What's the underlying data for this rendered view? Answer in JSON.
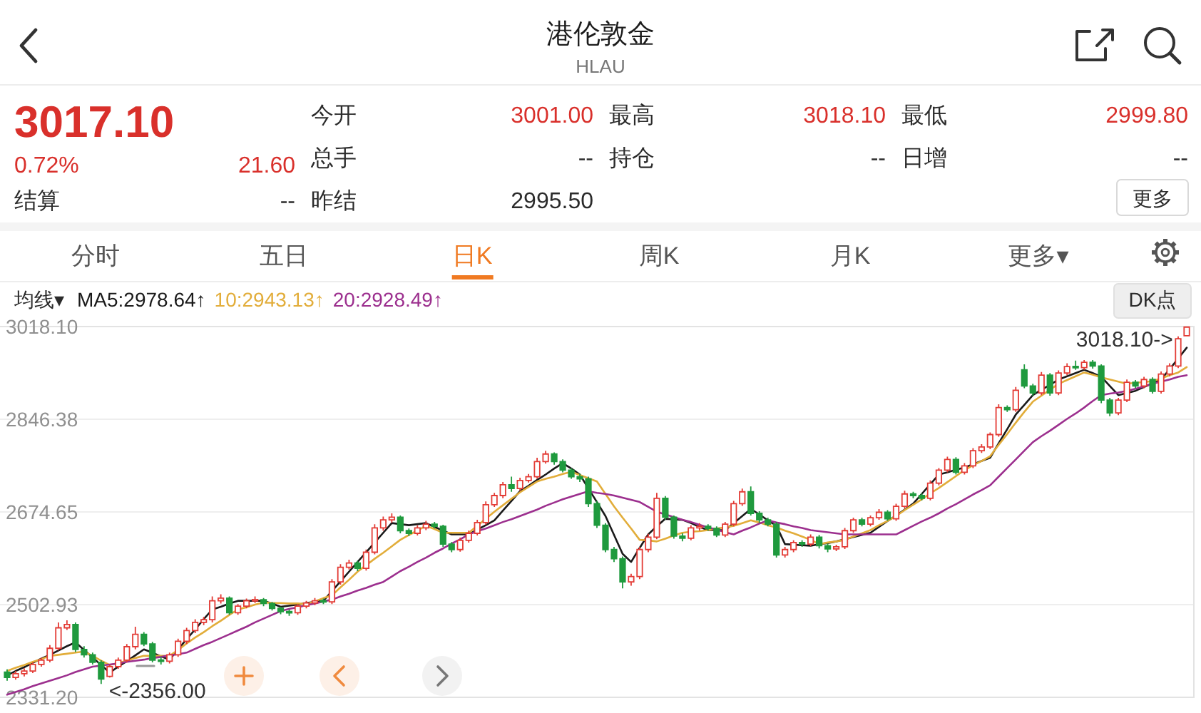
{
  "chart_data": {
    "type": "candlestick",
    "title": "港伦敦金",
    "subtitle": "HLAU",
    "categories": [
      null,
      null,
      null,
      null,
      null,
      null,
      null,
      null,
      null,
      null,
      null,
      null,
      null,
      null,
      null,
      null,
      null,
      null,
      null,
      null,
      null,
      null,
      null,
      null,
      null,
      null,
      null,
      null,
      null,
      null,
      null,
      null,
      null,
      null,
      null,
      null,
      null,
      null,
      null,
      null,
      null,
      null,
      null,
      null,
      null,
      null,
      null,
      null,
      null,
      null,
      null,
      null,
      null,
      null,
      null,
      null,
      null,
      null,
      null,
      null,
      null,
      null,
      null,
      null,
      null,
      null,
      null,
      null,
      null,
      null,
      null,
      null,
      null,
      null,
      null,
      null,
      null,
      null,
      null,
      null,
      null,
      null,
      null,
      null,
      null,
      null,
      null,
      null,
      null,
      null,
      null,
      null,
      null,
      null,
      null,
      null,
      null,
      null,
      null,
      null,
      null,
      null,
      null,
      null,
      null,
      null,
      null,
      null,
      null,
      null,
      null,
      null,
      null,
      null,
      null,
      null,
      null,
      null,
      null,
      null,
      null,
      null,
      null,
      null,
      null,
      null,
      null,
      null,
      null,
      null,
      null,
      null,
      null,
      null,
      null,
      null,
      null,
      null,
      null
    ],
    "ohlc": [
      [
        2378,
        2383,
        2362,
        2368
      ],
      [
        2368,
        2380,
        2364,
        2375
      ],
      [
        2375,
        2385,
        2370,
        2380
      ],
      [
        2380,
        2396,
        2376,
        2392
      ],
      [
        2392,
        2405,
        2388,
        2400
      ],
      [
        2400,
        2428,
        2396,
        2422
      ],
      [
        2422,
        2470,
        2418,
        2460
      ],
      [
        2460,
        2474,
        2456,
        2466
      ],
      [
        2466,
        2470,
        2415,
        2420
      ],
      [
        2420,
        2426,
        2405,
        2410
      ],
      [
        2410,
        2414,
        2392,
        2396
      ],
      [
        2396,
        2400,
        2356,
        2365
      ],
      [
        2370,
        2392,
        2368,
        2388
      ],
      [
        2388,
        2405,
        2384,
        2400
      ],
      [
        2400,
        2430,
        2396,
        2425
      ],
      [
        2425,
        2462,
        2420,
        2448
      ],
      [
        2448,
        2452,
        2426,
        2430
      ],
      [
        2430,
        2434,
        2396,
        2400
      ],
      [
        2400,
        2406,
        2392,
        2398
      ],
      [
        2398,
        2414,
        2394,
        2410
      ],
      [
        2410,
        2440,
        2406,
        2435
      ],
      [
        2435,
        2460,
        2430,
        2455
      ],
      [
        2455,
        2476,
        2450,
        2470
      ],
      [
        2470,
        2480,
        2465,
        2475
      ],
      [
        2475,
        2518,
        2470,
        2510
      ],
      [
        2510,
        2522,
        2505,
        2515
      ],
      [
        2515,
        2518,
        2484,
        2488
      ],
      [
        2488,
        2504,
        2484,
        2500
      ],
      [
        2500,
        2514,
        2496,
        2510
      ],
      [
        2510,
        2518,
        2506,
        2512
      ],
      [
        2512,
        2515,
        2500,
        2505
      ],
      [
        2505,
        2508,
        2492,
        2496
      ],
      [
        2496,
        2499,
        2485,
        2490
      ],
      [
        2490,
        2494,
        2482,
        2488
      ],
      [
        2488,
        2504,
        2484,
        2500
      ],
      [
        2500,
        2510,
        2496,
        2506
      ],
      [
        2506,
        2515,
        2502,
        2510
      ],
      [
        2510,
        2514,
        2504,
        2508
      ],
      [
        2508,
        2550,
        2504,
        2545
      ],
      [
        2545,
        2578,
        2540,
        2572
      ],
      [
        2572,
        2586,
        2568,
        2580
      ],
      [
        2580,
        2584,
        2565,
        2570
      ],
      [
        2570,
        2605,
        2566,
        2600
      ],
      [
        2600,
        2652,
        2596,
        2645
      ],
      [
        2645,
        2666,
        2640,
        2660
      ],
      [
        2660,
        2672,
        2655,
        2665
      ],
      [
        2665,
        2668,
        2635,
        2640
      ],
      [
        2640,
        2644,
        2630,
        2635
      ],
      [
        2635,
        2650,
        2631,
        2645
      ],
      [
        2645,
        2658,
        2641,
        2652
      ],
      [
        2652,
        2656,
        2644,
        2648
      ],
      [
        2648,
        2651,
        2610,
        2615
      ],
      [
        2615,
        2619,
        2600,
        2605
      ],
      [
        2605,
        2627,
        2601,
        2622
      ],
      [
        2622,
        2640,
        2618,
        2635
      ],
      [
        2635,
        2660,
        2631,
        2655
      ],
      [
        2655,
        2694,
        2651,
        2688
      ],
      [
        2688,
        2710,
        2684,
        2705
      ],
      [
        2705,
        2730,
        2700,
        2725
      ],
      [
        2725,
        2740,
        2712,
        2718
      ],
      [
        2718,
        2738,
        2714,
        2733
      ],
      [
        2733,
        2745,
        2729,
        2740
      ],
      [
        2740,
        2775,
        2736,
        2768
      ],
      [
        2768,
        2788,
        2764,
        2782
      ],
      [
        2782,
        2785,
        2762,
        2768
      ],
      [
        2768,
        2772,
        2748,
        2752
      ],
      [
        2752,
        2756,
        2736,
        2740
      ],
      [
        2740,
        2745,
        2730,
        2736
      ],
      [
        2736,
        2740,
        2684,
        2690
      ],
      [
        2690,
        2695,
        2645,
        2650
      ],
      [
        2650,
        2654,
        2600,
        2605
      ],
      [
        2605,
        2610,
        2582,
        2588
      ],
      [
        2588,
        2592,
        2533,
        2545
      ],
      [
        2545,
        2560,
        2538,
        2555
      ],
      [
        2555,
        2610,
        2550,
        2605
      ],
      [
        2605,
        2634,
        2600,
        2628
      ],
      [
        2628,
        2710,
        2624,
        2700
      ],
      [
        2700,
        2704,
        2660,
        2665
      ],
      [
        2665,
        2668,
        2625,
        2630
      ],
      [
        2630,
        2635,
        2620,
        2626
      ],
      [
        2626,
        2650,
        2622,
        2645
      ],
      [
        2645,
        2654,
        2640,
        2648
      ],
      [
        2648,
        2652,
        2640,
        2644
      ],
      [
        2644,
        2648,
        2628,
        2632
      ],
      [
        2632,
        2656,
        2628,
        2652
      ],
      [
        2652,
        2695,
        2648,
        2690
      ],
      [
        2690,
        2718,
        2686,
        2712
      ],
      [
        2712,
        2722,
        2668,
        2672
      ],
      [
        2672,
        2676,
        2655,
        2660
      ],
      [
        2660,
        2664,
        2648,
        2652
      ],
      [
        2652,
        2656,
        2590,
        2595
      ],
      [
        2595,
        2610,
        2590,
        2605
      ],
      [
        2605,
        2622,
        2600,
        2618
      ],
      [
        2618,
        2622,
        2610,
        2615
      ],
      [
        2615,
        2633,
        2611,
        2628
      ],
      [
        2628,
        2632,
        2607,
        2612
      ],
      [
        2612,
        2616,
        2600,
        2606
      ],
      [
        2606,
        2614,
        2602,
        2610
      ],
      [
        2610,
        2645,
        2606,
        2640
      ],
      [
        2640,
        2664,
        2636,
        2660
      ],
      [
        2660,
        2664,
        2648,
        2652
      ],
      [
        2652,
        2668,
        2648,
        2664
      ],
      [
        2664,
        2680,
        2660,
        2674
      ],
      [
        2674,
        2678,
        2658,
        2662
      ],
      [
        2662,
        2690,
        2658,
        2685
      ],
      [
        2685,
        2714,
        2681,
        2708
      ],
      [
        2708,
        2712,
        2700,
        2705
      ],
      [
        2705,
        2709,
        2696,
        2700
      ],
      [
        2700,
        2733,
        2696,
        2728
      ],
      [
        2728,
        2756,
        2724,
        2752
      ],
      [
        2752,
        2777,
        2748,
        2772
      ],
      [
        2772,
        2776,
        2744,
        2748
      ],
      [
        2748,
        2765,
        2744,
        2760
      ],
      [
        2760,
        2793,
        2756,
        2788
      ],
      [
        2788,
        2800,
        2784,
        2795
      ],
      [
        2795,
        2822,
        2791,
        2818
      ],
      [
        2818,
        2874,
        2814,
        2868
      ],
      [
        2868,
        2872,
        2860,
        2864
      ],
      [
        2864,
        2906,
        2860,
        2900
      ],
      [
        2938,
        2948,
        2904,
        2908
      ],
      [
        2908,
        2912,
        2890,
        2895
      ],
      [
        2895,
        2934,
        2891,
        2928
      ],
      [
        2928,
        2932,
        2890,
        2895
      ],
      [
        2895,
        2937,
        2891,
        2932
      ],
      [
        2932,
        2950,
        2928,
        2944
      ],
      [
        2944,
        2955,
        2938,
        2942
      ],
      [
        2942,
        2956,
        2938,
        2952
      ],
      [
        2952,
        2956,
        2940,
        2945
      ],
      [
        2945,
        2948,
        2876,
        2882
      ],
      [
        2882,
        2886,
        2852,
        2858
      ],
      [
        2858,
        2886,
        2854,
        2882
      ],
      [
        2882,
        2920,
        2878,
        2915
      ],
      [
        2915,
        2919,
        2904,
        2908
      ],
      [
        2908,
        2925,
        2904,
        2920
      ],
      [
        2920,
        2924,
        2894,
        2898
      ],
      [
        2898,
        2935,
        2894,
        2930
      ],
      [
        2930,
        2950,
        2926,
        2945
      ],
      [
        2945,
        3000,
        2941,
        2995.5
      ],
      [
        3001.0,
        3018.1,
        2999.8,
        3017.1
      ]
    ],
    "colors": [
      "#1f9a3e",
      "#e33b35",
      "#e33b35",
      "#e33b35",
      "#e33b35",
      "#e33b35",
      "#e33b35",
      "#e33b35",
      "#1f9a3e",
      "#1f9a3e",
      "#1f9a3e",
      "#1f9a3e",
      "#e33b35",
      "#e33b35",
      "#e33b35",
      "#e33b35",
      "#1f9a3e",
      "#1f9a3e",
      "#1f9a3e",
      "#e33b35",
      "#e33b35",
      "#e33b35",
      "#e33b35",
      "#e33b35",
      "#e33b35",
      "#e33b35",
      "#1f9a3e",
      "#e33b35",
      "#e33b35",
      "#e33b35",
      "#1f9a3e",
      "#1f9a3e",
      "#1f9a3e",
      "#1f9a3e",
      "#e33b35",
      "#e33b35",
      "#e33b35",
      "#1f9a3e",
      "#e33b35",
      "#e33b35",
      "#e33b35",
      "#1f9a3e",
      "#e33b35",
      "#e33b35",
      "#e33b35",
      "#e33b35",
      "#1f9a3e",
      "#1f9a3e",
      "#e33b35",
      "#e33b35",
      "#1f9a3e",
      "#1f9a3e",
      "#1f9a3e",
      "#e33b35",
      "#e33b35",
      "#e33b35",
      "#e33b35",
      "#e33b35",
      "#e33b35",
      "#1f9a3e",
      "#e33b35",
      "#e33b35",
      "#e33b35",
      "#e33b35",
      "#1f9a3e",
      "#1f9a3e",
      "#1f9a3e",
      "#1f9a3e",
      "#1f9a3e",
      "#1f9a3e",
      "#1f9a3e",
      "#1f9a3e",
      "#1f9a3e",
      "#e33b35",
      "#e33b35",
      "#e33b35",
      "#e33b35",
      "#1f9a3e",
      "#1f9a3e",
      "#1f9a3e",
      "#e33b35",
      "#e33b35",
      "#1f9a3e",
      "#1f9a3e",
      "#e33b35",
      "#e33b35",
      "#e33b35",
      "#1f9a3e",
      "#1f9a3e",
      "#1f9a3e",
      "#1f9a3e",
      "#e33b35",
      "#e33b35",
      "#1f9a3e",
      "#e33b35",
      "#1f9a3e",
      "#1f9a3e",
      "#e33b35",
      "#e33b35",
      "#e33b35",
      "#1f9a3e",
      "#e33b35",
      "#e33b35",
      "#1f9a3e",
      "#e33b35",
      "#e33b35",
      "#1f9a3e",
      "#1f9a3e",
      "#e33b35",
      "#e33b35",
      "#e33b35",
      "#1f9a3e",
      "#e33b35",
      "#e33b35",
      "#e33b35",
      "#e33b35",
      "#e33b35",
      "#1f9a3e",
      "#e33b35",
      "#1f9a3e",
      "#1f9a3e",
      "#e33b35",
      "#1f9a3e",
      "#e33b35",
      "#e33b35",
      "#1f9a3e",
      "#e33b35",
      "#1f9a3e",
      "#1f9a3e",
      "#1f9a3e",
      "#e33b35",
      "#e33b35",
      "#1f9a3e",
      "#e33b35",
      "#1f9a3e",
      "#e33b35",
      "#e33b35",
      "#e33b35",
      "#e33b35"
    ],
    "series": [
      {
        "name": "MA5:2978.64↑",
        "type": "line",
        "color": "#1a1a1a",
        "values": [
          2372,
          2380,
          2387,
          2395,
          2403,
          2410,
          2418,
          2426,
          2433,
          2419,
          2405,
          2391,
          2377,
          2388,
          2398,
          2409,
          2420,
          2414,
          2407,
          2401,
          2420,
          2439,
          2457,
          2476,
          2494,
          2499,
          2505,
          2510,
          2510,
          2510,
          2510,
          2505,
          2499,
          2501,
          2503,
          2506,
          2508,
          2510,
          2528,
          2546,
          2564,
          2582,
          2600,
          2618,
          2636,
          2654,
          2652,
          2650,
          2652,
          2654,
          2647,
          2640,
          2633,
          2633,
          2633,
          2642,
          2650,
          2659,
          2677,
          2695,
          2713,
          2723,
          2734,
          2744,
          2755,
          2765,
          2755,
          2744,
          2718,
          2693,
          2667,
          2632,
          2597,
          2582,
          2608,
          2633,
          2648,
          2662,
          2661,
          2660,
          2654,
          2647,
          2641,
          2641,
          2641,
          2654,
          2667,
          2680,
          2670,
          2659,
          2649,
          2615,
          2614,
          2613,
          2612,
          2615,
          2617,
          2620,
          2624,
          2628,
          2632,
          2636,
          2647,
          2658,
          2668,
          2679,
          2690,
          2708,
          2726,
          2744,
          2748,
          2753,
          2757,
          2763,
          2769,
          2775,
          2802,
          2828,
          2855,
          2873,
          2891,
          2901,
          2910,
          2920,
          2926,
          2932,
          2938,
          2932,
          2925,
          2908,
          2891,
          2895,
          2899,
          2906,
          2913,
          2920,
          2939,
          2959,
          2979
        ]
      },
      {
        "name": "10:2943.13↑",
        "type": "line",
        "color": "#e2ad3a",
        "values": [
          2380,
          2386,
          2391,
          2397,
          2402,
          2408,
          2410,
          2412,
          2414,
          2416,
          2408,
          2399,
          2391,
          2395,
          2399,
          2404,
          2408,
          2408,
          2408,
          2408,
          2419,
          2431,
          2442,
          2452,
          2463,
          2473,
          2484,
          2494,
          2498,
          2503,
          2507,
          2506,
          2506,
          2505,
          2505,
          2504,
          2509,
          2515,
          2520,
          2535,
          2549,
          2564,
          2576,
          2588,
          2599,
          2611,
          2623,
          2632,
          2640,
          2649,
          2643,
          2636,
          2636,
          2636,
          2636,
          2649,
          2662,
          2675,
          2687,
          2699,
          2711,
          2721,
          2731,
          2736,
          2740,
          2745,
          2749,
          2743,
          2737,
          2731,
          2708,
          2685,
          2664,
          2644,
          2623,
          2622,
          2620,
          2625,
          2631,
          2636,
          2638,
          2639,
          2641,
          2644,
          2646,
          2649,
          2654,
          2659,
          2655,
          2650,
          2646,
          2640,
          2635,
          2629,
          2623,
          2615,
          2618,
          2620,
          2623,
          2629,
          2635,
          2641,
          2650,
          2658,
          2667,
          2678,
          2688,
          2698,
          2709,
          2719,
          2730,
          2741,
          2752,
          2761,
          2769,
          2778,
          2799,
          2819,
          2840,
          2860,
          2879,
          2890,
          2901,
          2912,
          2919,
          2926,
          2933,
          2929,
          2924,
          2920,
          2916,
          2912,
          2914,
          2915,
          2917,
          2922,
          2928,
          2933,
          2943
        ]
      },
      {
        "name": "20:2928.49↑",
        "type": "line",
        "color": "#9c2f8e",
        "values": [
          2336,
          2341,
          2346,
          2352,
          2357,
          2362,
          2367,
          2372,
          2378,
          2383,
          2388,
          2390,
          2392,
          2394,
          2397,
          2399,
          2401,
          2404,
          2406,
          2409,
          2411,
          2414,
          2421,
          2428,
          2434,
          2441,
          2448,
          2455,
          2462,
          2470,
          2477,
          2484,
          2491,
          2495,
          2498,
          2502,
          2505,
          2509,
          2512,
          2518,
          2523,
          2529,
          2534,
          2540,
          2545,
          2555,
          2565,
          2573,
          2582,
          2590,
          2599,
          2607,
          2616,
          2624,
          2633,
          2639,
          2644,
          2650,
          2656,
          2661,
          2667,
          2673,
          2679,
          2686,
          2692,
          2698,
          2703,
          2708,
          2713,
          2710,
          2708,
          2705,
          2701,
          2697,
          2693,
          2684,
          2675,
          2670,
          2665,
          2660,
          2656,
          2651,
          2646,
          2642,
          2637,
          2633,
          2640,
          2646,
          2653,
          2659,
          2655,
          2652,
          2648,
          2645,
          2641,
          2639,
          2637,
          2635,
          2633,
          2633,
          2633,
          2633,
          2633,
          2633,
          2633,
          2641,
          2649,
          2657,
          2664,
          2672,
          2681,
          2689,
          2698,
          2707,
          2715,
          2724,
          2740,
          2756,
          2772,
          2788,
          2804,
          2815,
          2825,
          2836,
          2847,
          2857,
          2868,
          2880,
          2891,
          2894,
          2896,
          2899,
          2903,
          2907,
          2912,
          2916,
          2920,
          2925,
          2928
        ]
      }
    ],
    "ylim": [
      2331.2,
      3018.1
    ],
    "yticks": [
      {
        "value": 3018.1,
        "label": "3018.10"
      },
      {
        "value": 2846.38,
        "label": "2846.38"
      },
      {
        "value": 2674.65,
        "label": "2674.65"
      },
      {
        "value": 2502.93,
        "label": "2502.93"
      },
      {
        "value": 2331.2,
        "label": "2331.20"
      }
    ],
    "grid": "y",
    "legend": "top left",
    "tick_labels": "y",
    "annotations": [
      "3017.10",
      "0.72%",
      "21.60",
      "结算",
      "--",
      "今开",
      "3001.00",
      "总手",
      "--",
      "昨结",
      "2995.50",
      "最高",
      "3018.10",
      "持仓",
      "--",
      "最低",
      "2999.80",
      "日增",
      "--",
      "更多",
      "分时",
      "五日",
      "日K",
      "周K",
      "月K",
      "更多▾",
      "均线▾",
      "DK点",
      "<-2356.00",
      "3018.10->"
    ]
  }
}
